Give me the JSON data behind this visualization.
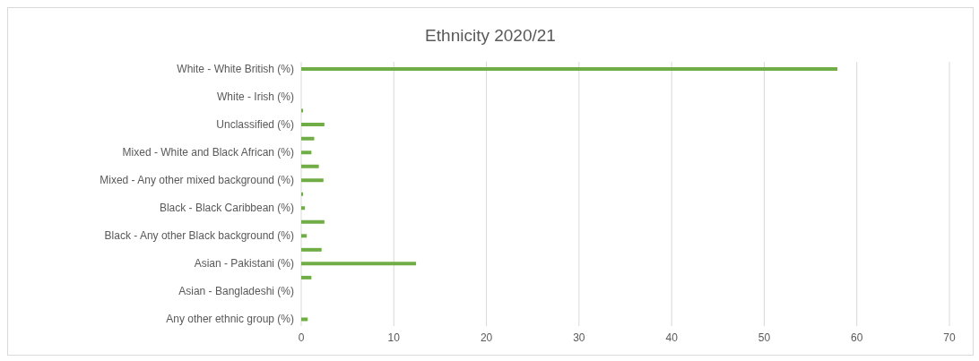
{
  "chart_data": {
    "type": "bar",
    "orientation": "horizontal",
    "title": "Ethnicity 2020/21",
    "categories": [
      "White - White British (%)",
      null,
      "White - Irish (%)",
      null,
      "Unclassified (%)",
      null,
      "Mixed - White and Black African (%)",
      null,
      "Mixed - Any other mixed background (%)",
      null,
      "Black - Black Caribbean (%)",
      null,
      "Black - Any other Black background (%)",
      null,
      "Asian - Pakistani (%)",
      null,
      "Asian - Bangladeshi (%)",
      null,
      "Any other ethnic group (%)"
    ],
    "values": [
      57.9,
      0,
      0,
      0.2,
      2.5,
      1.4,
      1.1,
      1.9,
      2.4,
      0.2,
      0.4,
      2.5,
      0.6,
      2.2,
      12.4,
      1.1,
      0,
      0,
      0.7
    ],
    "color": "#70ad47",
    "xlim": [
      0,
      70
    ],
    "xticks": [
      0,
      10,
      20,
      30,
      40,
      50,
      60,
      70
    ],
    "grid": "x"
  }
}
